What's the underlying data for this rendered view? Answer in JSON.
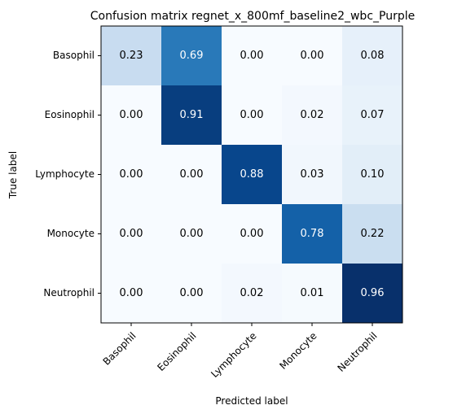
{
  "chart_data": {
    "type": "heatmap",
    "title": "Confusion matrix regnet_x_800mf_baseline2_wbc_Purple",
    "xlabel": "Predicted label",
    "ylabel": "True label",
    "x_categories": [
      "Basophil",
      "Eosinophil",
      "Lymphocyte",
      "Monocyte",
      "Neutrophil"
    ],
    "y_categories": [
      "Basophil",
      "Eosinophil",
      "Lymphocyte",
      "Monocyte",
      "Neutrophil"
    ],
    "values": [
      [
        0.23,
        0.69,
        0.0,
        0.0,
        0.08
      ],
      [
        0.0,
        0.91,
        0.0,
        0.02,
        0.07
      ],
      [
        0.0,
        0.0,
        0.88,
        0.03,
        0.1
      ],
      [
        0.0,
        0.0,
        0.0,
        0.78,
        0.22
      ],
      [
        0.0,
        0.0,
        0.02,
        0.01,
        0.96
      ]
    ],
    "colormap": "Blues",
    "value_range": [
      0,
      0.96
    ],
    "text_color_dark": "#000000",
    "text_color_light": "#ffffff"
  }
}
